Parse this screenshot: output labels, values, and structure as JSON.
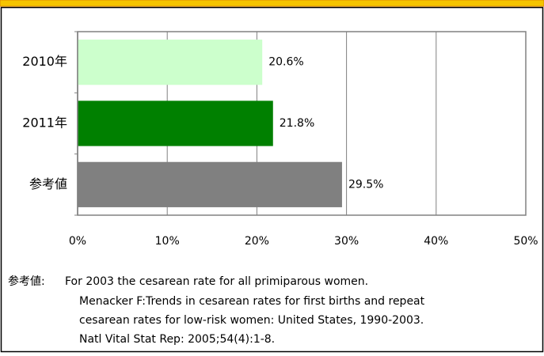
{
  "chart_data": {
    "type": "bar",
    "orientation": "horizontal",
    "categories": [
      "2010年",
      "2011年",
      "参考値"
    ],
    "values": [
      20.6,
      21.8,
      29.5
    ],
    "value_labels": [
      "20.6%",
      "21.8%",
      "29.5%"
    ],
    "colors": [
      "#ccffcc",
      "#008000",
      "#808080"
    ],
    "xlim": [
      0,
      50
    ],
    "xticks": [
      {
        "value": 0,
        "label": "0%"
      },
      {
        "value": 10,
        "label": "10%"
      },
      {
        "value": 20,
        "label": "20%"
      },
      {
        "value": 30,
        "label": "30%"
      },
      {
        "value": 40,
        "label": "40%"
      },
      {
        "value": 50,
        "label": "50%"
      }
    ],
    "grid": true,
    "note": {
      "label": "参考値:",
      "lines": [
        "For 2003 the cesarean rate for all primiparous women.",
        "Menacker F:Trends in cesarean rates for first births and repeat",
        "cesarean rates for low-risk women: United States, 1990-2003.",
        "Natl Vital Stat Rep: 2005;54(4):1-8."
      ]
    }
  }
}
